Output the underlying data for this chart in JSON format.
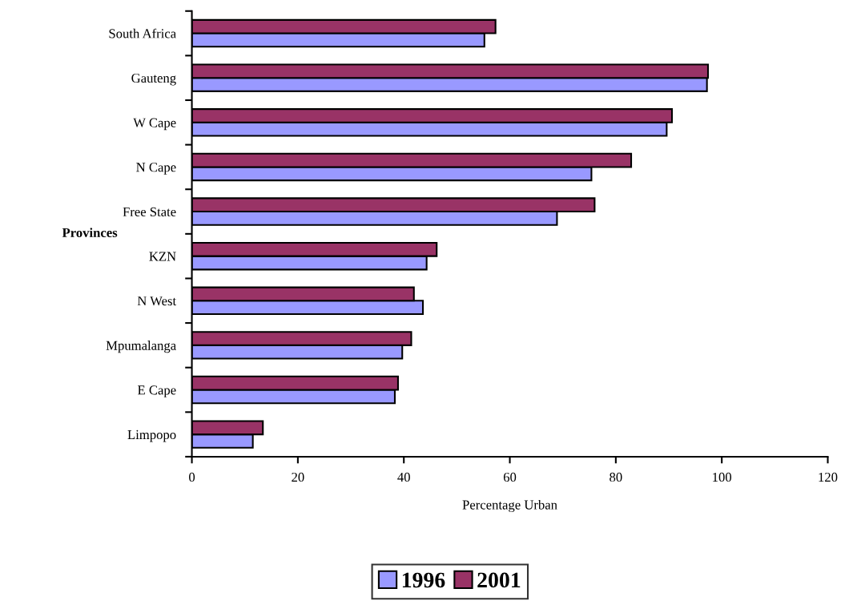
{
  "chart_data": {
    "type": "bar",
    "orientation": "horizontal",
    "categories": [
      "South Africa",
      "Gauteng",
      "W Cape",
      "N Cape",
      "Free State",
      "KZN",
      "N West",
      "Mpumalanga",
      "E Cape",
      "Limpopo"
    ],
    "series": [
      {
        "name": "1996",
        "color": "#9999ff",
        "values": [
          55.2,
          97.2,
          89.6,
          75.4,
          68.9,
          44.3,
          43.6,
          39.7,
          38.3,
          11.5
        ]
      },
      {
        "name": "2001",
        "color": "#993366",
        "values": [
          57.3,
          97.4,
          90.6,
          82.9,
          76.0,
          46.2,
          41.9,
          41.4,
          38.9,
          13.4
        ]
      }
    ],
    "xlabel": "Percentage Urban",
    "ylabel": "Provinces",
    "xlim": [
      0,
      120
    ],
    "xticks": [
      0,
      20,
      40,
      60,
      80,
      100,
      120
    ],
    "grid": false,
    "legend": "bottom"
  }
}
